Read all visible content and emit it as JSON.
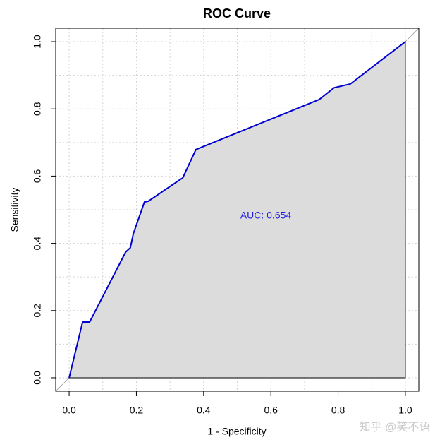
{
  "chart_data": {
    "type": "line",
    "title": "ROC Curve",
    "xlabel": "1 - Specificity",
    "ylabel": "Sensitivity",
    "annotation": "AUC: 0.654",
    "watermark": "知乎 @笑不语",
    "x": [
      0,
      0.04,
      0.061,
      0.168,
      0.182,
      0.191,
      0.224,
      0.235,
      0.338,
      0.377,
      0.744,
      0.788,
      0.836,
      1
    ],
    "series": [
      {
        "name": "ROC",
        "color": "#0000cd",
        "values": [
          0,
          0.166,
          0.166,
          0.374,
          0.387,
          0.429,
          0.523,
          0.525,
          0.595,
          0.679,
          0.828,
          0.863,
          0.874,
          1
        ]
      }
    ],
    "xlim": [
      -0.04,
      1.04
    ],
    "ylim": [
      -0.04,
      1.04
    ],
    "xticks": [
      {
        "value": 0,
        "label": "0.0"
      },
      0.2,
      0.4,
      0.6,
      0.8,
      {
        "value": 1,
        "label": "1.0"
      }
    ],
    "yticks": [
      {
        "value": 0,
        "label": "0.0"
      },
      0.2,
      0.4,
      0.6,
      0.8,
      {
        "value": 1,
        "label": "1.0"
      }
    ],
    "grid": true,
    "xgrid": [
      0,
      0.1,
      0.2,
      0.3,
      0.4,
      0.5,
      0.6,
      0.7,
      0.8,
      0.9,
      1
    ],
    "ygrid": [
      0,
      0.1,
      0.2,
      0.3,
      0.4,
      0.5,
      0.6,
      0.7,
      0.8,
      0.9,
      1
    ],
    "fill_color": "#dcdcdc",
    "annotation_color": "#1f1fe0"
  }
}
